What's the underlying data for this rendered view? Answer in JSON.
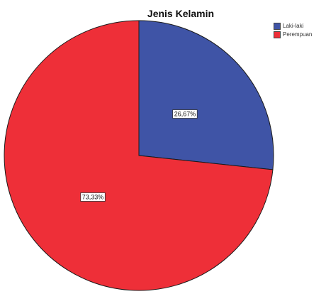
{
  "chart_data": {
    "type": "pie",
    "title": "Jenis Kelamin",
    "slices": [
      {
        "name": "Laki-laki",
        "value": 26.67,
        "label": "26,67%",
        "color": "#3f54a6"
      },
      {
        "name": "Perempuan",
        "value": 73.33,
        "label": "73,33%",
        "color": "#ee2f38"
      }
    ],
    "legend": {
      "position": "top-right",
      "entries": [
        "Laki-laki",
        "Perempuan"
      ]
    }
  }
}
